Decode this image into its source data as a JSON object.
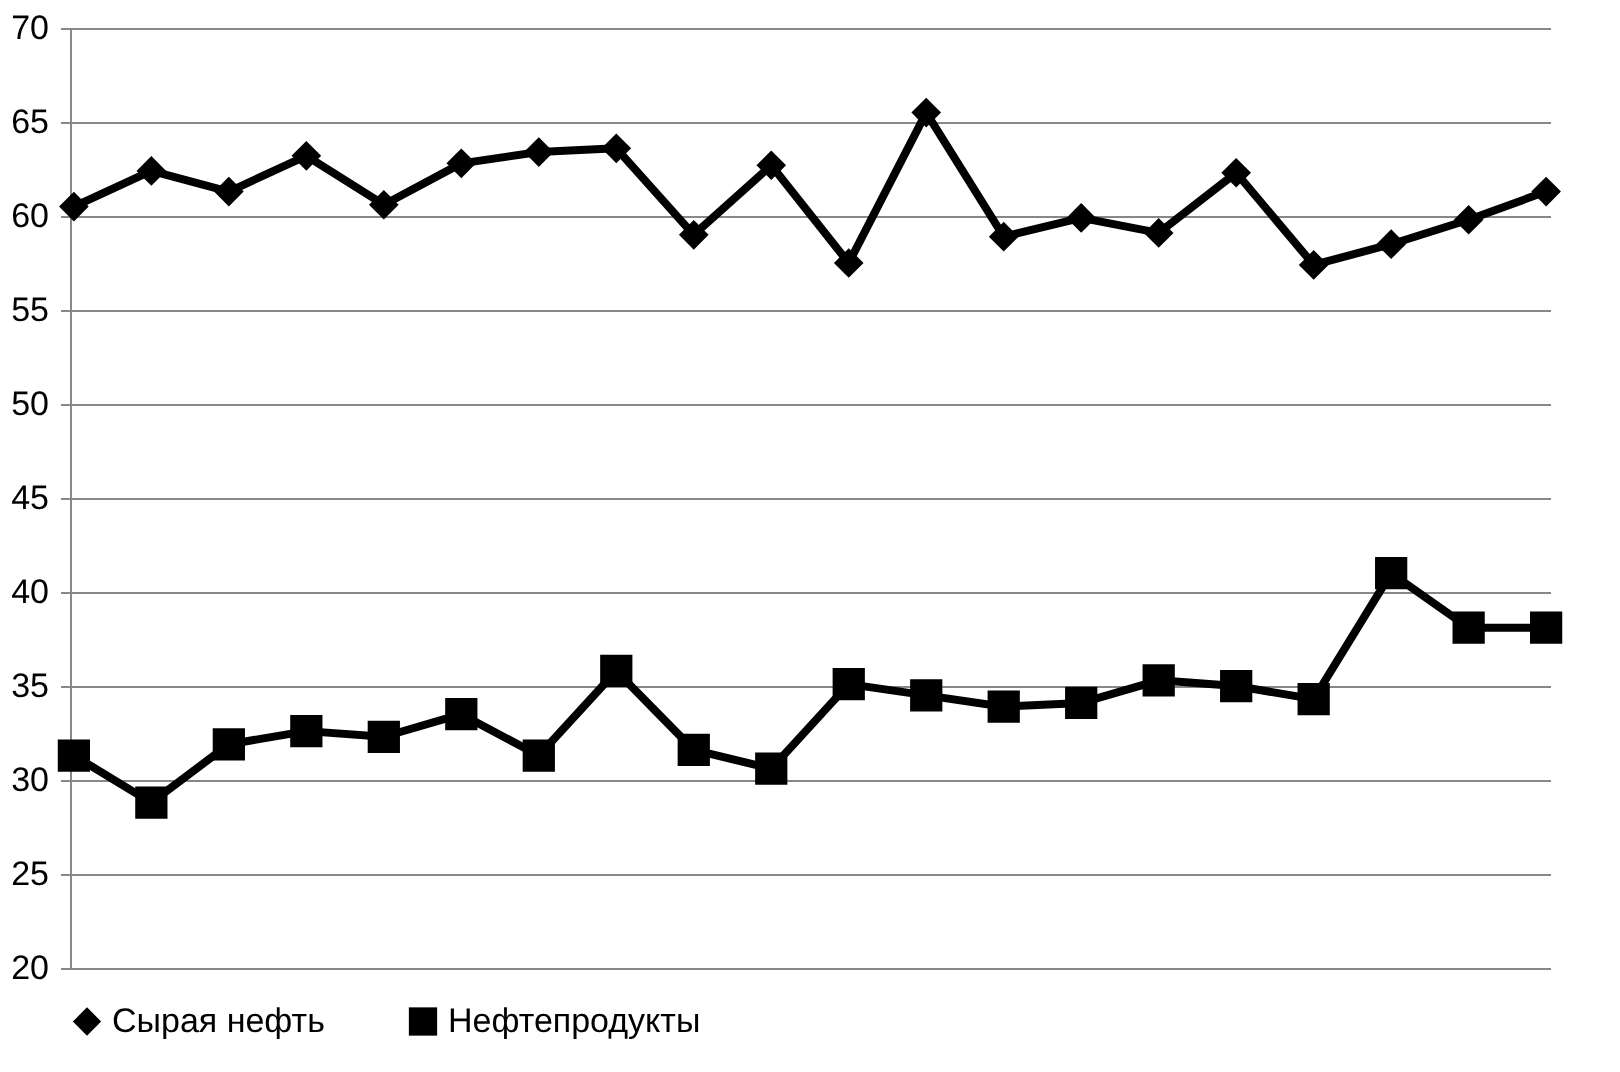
{
  "chart_data": {
    "type": "line",
    "categories": [
      null,
      null,
      null,
      null,
      null,
      null,
      null,
      null,
      null,
      null,
      null,
      null,
      null,
      null,
      null,
      null,
      null,
      null,
      null,
      null
    ],
    "series": [
      {
        "name": "Сырая нефть",
        "color": "#000000",
        "marker": "diamond",
        "values": [
          60.5,
          62.4,
          61.3,
          63.2,
          60.6,
          62.8,
          63.4,
          63.6,
          59.0,
          62.7,
          57.5,
          65.5,
          58.9,
          59.9,
          59.1,
          62.3,
          57.4,
          58.5,
          59.8,
          61.3
        ]
      },
      {
        "name": "Нефтепродукты",
        "color": "#000000",
        "marker": "square",
        "values": [
          31.3,
          28.8,
          31.9,
          32.6,
          32.3,
          33.5,
          31.3,
          35.8,
          31.6,
          30.6,
          35.1,
          34.5,
          33.9,
          34.1,
          35.3,
          35.0,
          34.3,
          41.0,
          38.1,
          38.1
        ]
      }
    ],
    "ylim": [
      20,
      70
    ],
    "yticks": [
      20,
      25,
      30,
      35,
      40,
      45,
      50,
      55,
      60,
      65,
      70
    ],
    "grid": "y",
    "legend": "bottom",
    "tick_labels": "y",
    "line_style": "solid"
  }
}
